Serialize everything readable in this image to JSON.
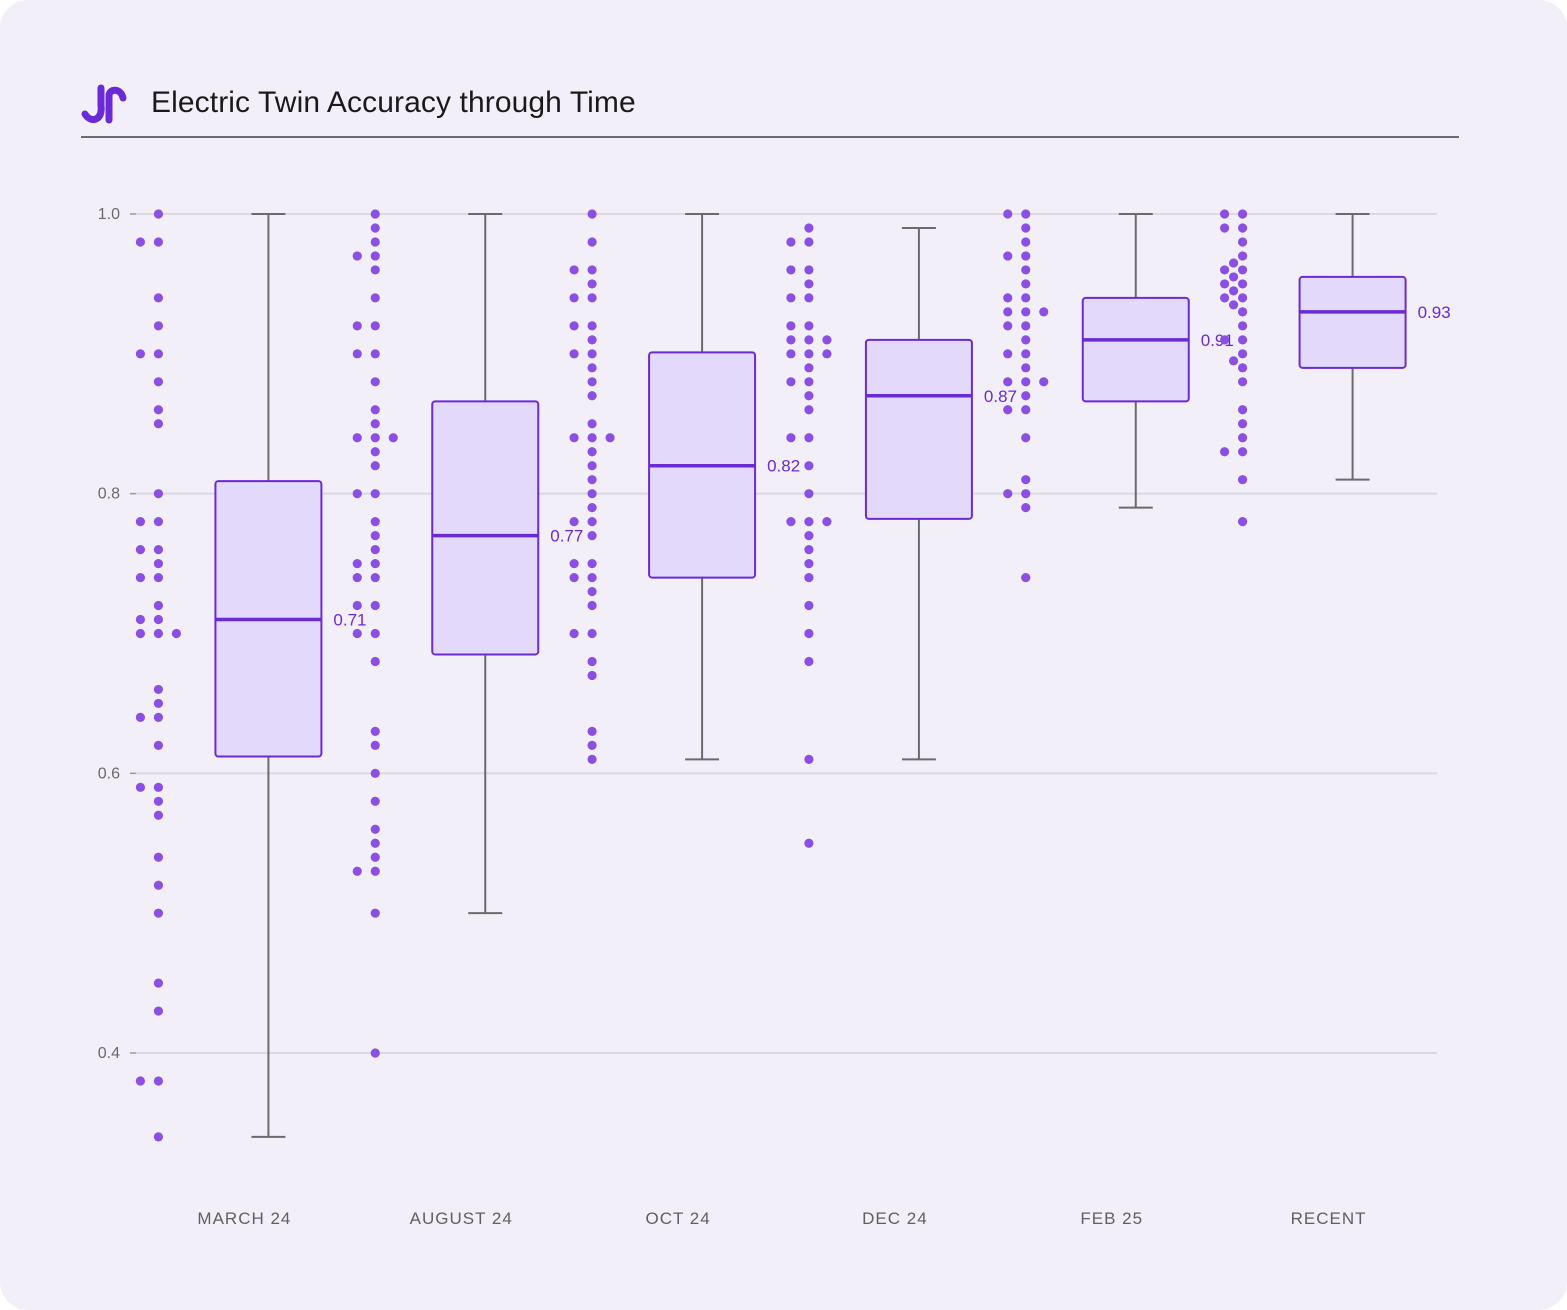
{
  "header": {
    "title": "Electric Twin Accuracy through Time",
    "logo_icon": "brand-logo-icon"
  },
  "colors": {
    "background": "#f3eff8",
    "accent": "#6a2ad6",
    "box_fill": "#e3d9fb",
    "box_stroke": "#6a2ad6",
    "point": "#8b4fe3",
    "whisker": "#6b6b6b",
    "grid": "#dcd8e2"
  },
  "chart_data": {
    "type": "box",
    "title": "Electric Twin Accuracy through Time",
    "xlabel": "",
    "ylabel": "",
    "ylim": [
      0.33,
      1.0
    ],
    "yticks": [
      0.4,
      0.6,
      0.8,
      1.0
    ],
    "ytick_labels": [
      "0.4",
      "0.6",
      "0.8",
      "1.0"
    ],
    "grid": true,
    "categories": [
      "MARCH 24",
      "AUGUST 24",
      "OCT 24",
      "DEC 24",
      "FEB 25",
      "RECENT"
    ],
    "boxes": [
      {
        "category": "MARCH 24",
        "min": 0.34,
        "q1": 0.612,
        "median": 0.71,
        "q3": 0.809,
        "max": 1.0,
        "median_label": "0.71"
      },
      {
        "category": "AUGUST 24",
        "min": 0.5,
        "q1": 0.685,
        "median": 0.77,
        "q3": 0.866,
        "max": 1.0,
        "median_label": "0.77"
      },
      {
        "category": "OCT 24",
        "min": 0.61,
        "q1": 0.74,
        "median": 0.82,
        "q3": 0.901,
        "max": 1.0,
        "median_label": "0.82"
      },
      {
        "category": "DEC 24",
        "min": 0.61,
        "q1": 0.782,
        "median": 0.87,
        "q3": 0.91,
        "max": 0.99,
        "median_label": "0.87"
      },
      {
        "category": "FEB 25",
        "min": 0.79,
        "q1": 0.866,
        "median": 0.91,
        "q3": 0.94,
        "max": 1.0,
        "median_label": "0.91"
      },
      {
        "category": "RECENT",
        "min": 0.81,
        "q1": 0.89,
        "median": 0.93,
        "q3": 0.955,
        "max": 1.0,
        "median_label": "0.93"
      }
    ],
    "points": [
      [
        1.0,
        0.98,
        0.98,
        0.94,
        0.92,
        0.9,
        0.9,
        0.88,
        0.86,
        0.85,
        0.8,
        0.78,
        0.78,
        0.76,
        0.76,
        0.75,
        0.74,
        0.74,
        0.72,
        0.71,
        0.71,
        0.7,
        0.7,
        0.7,
        0.66,
        0.65,
        0.64,
        0.64,
        0.62,
        0.59,
        0.59,
        0.58,
        0.57,
        0.54,
        0.52,
        0.5,
        0.45,
        0.43,
        0.38,
        0.38,
        0.34
      ],
      [
        1.0,
        0.99,
        0.98,
        0.97,
        0.97,
        0.96,
        0.94,
        0.92,
        0.92,
        0.9,
        0.9,
        0.88,
        0.86,
        0.85,
        0.84,
        0.84,
        0.84,
        0.83,
        0.82,
        0.8,
        0.8,
        0.78,
        0.77,
        0.76,
        0.75,
        0.75,
        0.74,
        0.74,
        0.72,
        0.72,
        0.7,
        0.7,
        0.68,
        0.63,
        0.62,
        0.6,
        0.58,
        0.56,
        0.55,
        0.54,
        0.53,
        0.53,
        0.5,
        0.4
      ],
      [
        1.0,
        0.98,
        0.96,
        0.96,
        0.95,
        0.94,
        0.94,
        0.92,
        0.92,
        0.91,
        0.9,
        0.9,
        0.89,
        0.88,
        0.87,
        0.85,
        0.84,
        0.84,
        0.84,
        0.83,
        0.82,
        0.81,
        0.8,
        0.79,
        0.78,
        0.78,
        0.77,
        0.75,
        0.75,
        0.74,
        0.74,
        0.73,
        0.72,
        0.7,
        0.7,
        0.68,
        0.67,
        0.63,
        0.62,
        0.61
      ],
      [
        0.99,
        0.98,
        0.98,
        0.96,
        0.96,
        0.95,
        0.94,
        0.94,
        0.92,
        0.92,
        0.91,
        0.91,
        0.91,
        0.9,
        0.9,
        0.9,
        0.89,
        0.88,
        0.88,
        0.87,
        0.86,
        0.84,
        0.84,
        0.82,
        0.8,
        0.78,
        0.78,
        0.78,
        0.77,
        0.76,
        0.75,
        0.74,
        0.72,
        0.7,
        0.68,
        0.61,
        0.55
      ],
      [
        1.0,
        1.0,
        0.99,
        0.98,
        0.97,
        0.97,
        0.96,
        0.95,
        0.94,
        0.94,
        0.93,
        0.93,
        0.93,
        0.92,
        0.92,
        0.91,
        0.9,
        0.9,
        0.89,
        0.88,
        0.88,
        0.88,
        0.87,
        0.86,
        0.86,
        0.84,
        0.81,
        0.8,
        0.8,
        0.79,
        0.74
      ],
      [
        1.0,
        1.0,
        0.99,
        0.99,
        0.98,
        0.97,
        0.965,
        0.96,
        0.96,
        0.955,
        0.95,
        0.95,
        0.945,
        0.94,
        0.94,
        0.935,
        0.93,
        0.92,
        0.91,
        0.91,
        0.9,
        0.895,
        0.89,
        0.88,
        0.86,
        0.85,
        0.84,
        0.83,
        0.83,
        0.81,
        0.78
      ]
    ]
  }
}
